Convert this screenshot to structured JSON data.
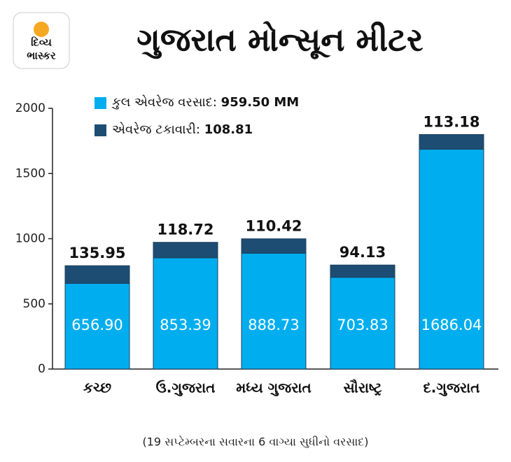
{
  "logo": [
    "દિવ્ય",
    "ભાસ્કર"
  ],
  "chart_data": {
    "type": "stacked_bar",
    "title": "ગુજરાત મોન્સૂન મીટર",
    "categories": [
      "કચ્છ",
      "ઉ.ગુજરાત",
      "મધ્ય ગુજરાત",
      "સૌરાષ્ટ્ર",
      "દ.ગુજરાત"
    ],
    "series": [
      {
        "name": "કુલ એવરેજ વરસાદ:",
        "total": "959.50 MM",
        "color": "#00aeef",
        "values": [
          656.9,
          853.39,
          888.73,
          703.83,
          1686.04
        ],
        "value_labels": [
          "656.90",
          "853.39",
          "888.73",
          "703.83",
          "1686.04"
        ]
      },
      {
        "name": "એવરેજ ટકાવારી:",
        "total": "108.81",
        "color": "#1d4d73",
        "values": [
          135.95,
          118.72,
          110.42,
          94.13,
          113.18
        ]
      }
    ],
    "ylim": [
      0,
      2000
    ],
    "yticks": [
      0,
      500,
      1000,
      1500,
      2000
    ],
    "note": "(19 સપ્ટેમ્બરના સવારના 6 વાગ્યા સુધીનો વરસાદ)"
  }
}
